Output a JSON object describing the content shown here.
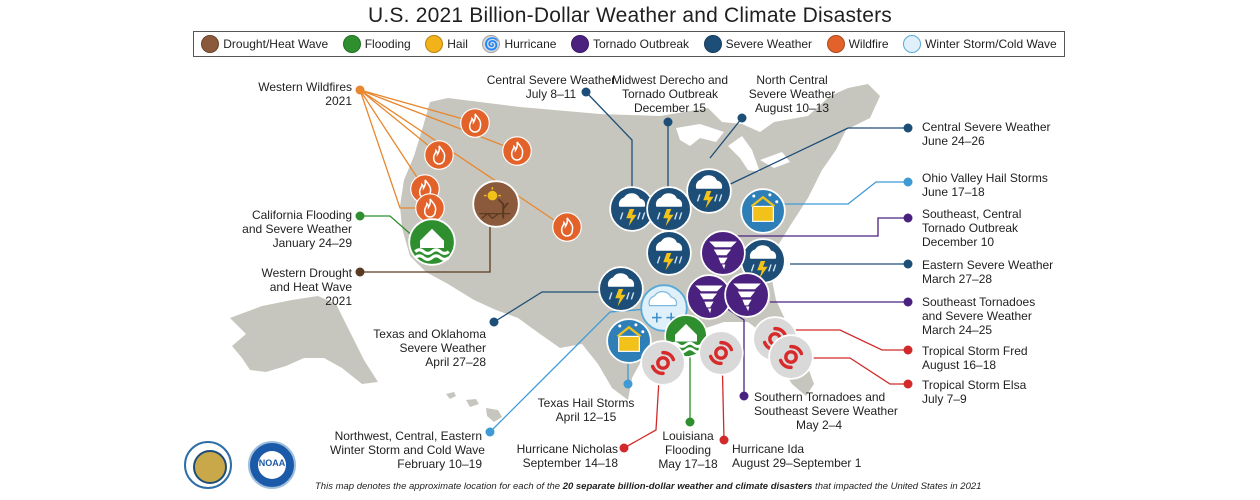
{
  "title": "U.S. 2021 Billion-Dollar Weather and Climate Disasters",
  "legend": [
    {
      "label": "Drought/Heat Wave",
      "icon": "drought-icon",
      "color": "#8b5a3c"
    },
    {
      "label": "Flooding",
      "icon": "flood-icon",
      "color": "#2f8f2f"
    },
    {
      "label": "Hail",
      "icon": "hail-icon",
      "color": "#f2b21a"
    },
    {
      "label": "Hurricane",
      "icon": "hurricane-icon",
      "color": "#d9d9d9"
    },
    {
      "label": "Tornado Outbreak",
      "icon": "tornado-icon",
      "color": "#4b2180"
    },
    {
      "label": "Severe Weather",
      "icon": "severe-weather-icon",
      "color": "#1d4e78"
    },
    {
      "label": "Wildfire",
      "icon": "wildfire-icon",
      "color": "#e2622a"
    },
    {
      "label": "Winter Storm/Cold Wave",
      "icon": "winter-storm-icon",
      "color": "#dff0fb"
    }
  ],
  "events": {
    "western_wildfires": [
      "Western Wildfires",
      "2021"
    ],
    "california_flooding": [
      "California Flooding",
      "and Severe Weather",
      "January 24–29"
    ],
    "western_drought": [
      "Western Drought",
      "and Heat Wave",
      "2021"
    ],
    "texas_oklahoma": [
      "Texas and Oklahoma",
      "Severe Weather",
      "April 27–28"
    ],
    "winter_storm": [
      "Northwest, Central, Eastern",
      "Winter Storm and Cold Wave",
      "February 10–19"
    ],
    "central_severe_july": [
      "Central Severe Weather",
      "July 8–11"
    ],
    "midwest_derecho": [
      "Midwest Derecho and",
      "Tornado Outbreak",
      "December 15"
    ],
    "north_central": [
      "North Central",
      "Severe Weather",
      "August 10–13"
    ],
    "central_severe_june": [
      "Central Severe Weather",
      "June 24–26"
    ],
    "ohio_valley_hail": [
      "Ohio Valley Hail Storms",
      "June 17–18"
    ],
    "southeast_central_tornado": [
      "Southeast, Central",
      "Tornado Outbreak",
      "December 10"
    ],
    "eastern_severe": [
      "Eastern Severe Weather",
      "March 27–28"
    ],
    "southeast_tornadoes": [
      "Southeast Tornadoes",
      "and Severe Weather",
      "March 24–25"
    ],
    "fred": [
      "Tropical Storm Fred",
      "August 16–18"
    ],
    "elsa": [
      "Tropical Storm Elsa",
      "July 7–9"
    ],
    "southern_tornadoes": [
      "Southern Tornadoes and",
      "Southeast Severe Weather",
      "May 2–4"
    ],
    "texas_hail": [
      "Texas Hail Storms",
      "April 12–15"
    ],
    "louisiana_flooding": [
      "Louisiana",
      "Flooding",
      "May 17–18"
    ],
    "nicholas": [
      "Hurricane Nicholas",
      "September 14–18"
    ],
    "ida": [
      "Hurricane Ida",
      "August 29–September 1"
    ]
  },
  "footnote": {
    "part1": "This map denotes the approximate location for each of the ",
    "bold": "20 separate billion-dollar weather and climate disasters",
    "part2": " that impacted the United States in 2021"
  },
  "logos": [
    "department-of-commerce-seal",
    "noaa-logo"
  ],
  "logo_text": "NOAA"
}
